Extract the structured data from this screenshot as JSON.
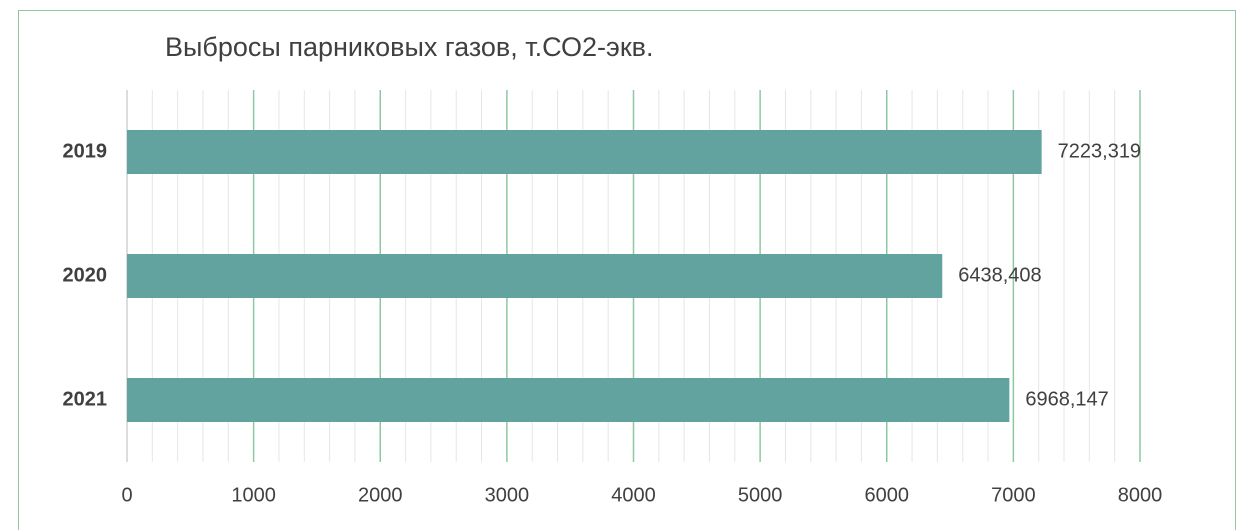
{
  "chart_data": {
    "type": "bar",
    "orientation": "horizontal",
    "title": "Выбросы парниковых газов, т.СО2-экв.",
    "categories": [
      "2019",
      "2020",
      "2021"
    ],
    "values": [
      7223.319,
      6438.408,
      6968.147
    ],
    "value_labels": [
      "7223,319",
      "6438,408",
      "6968,147"
    ],
    "xlim": [
      0,
      8000
    ],
    "x_ticks": [
      0,
      1000,
      2000,
      3000,
      4000,
      5000,
      6000,
      7000,
      8000
    ],
    "x_tick_labels": [
      "0",
      "1000",
      "2000",
      "3000",
      "4000",
      "5000",
      "6000",
      "7000",
      "8000"
    ],
    "minor_tick_step": 200,
    "grid": true,
    "colors": {
      "bar": "#62a39f",
      "major_grid": "#8cc9a2",
      "minor_grid": "#e6e6e6",
      "frame": "#8cc9a2",
      "text": "#404040"
    }
  }
}
